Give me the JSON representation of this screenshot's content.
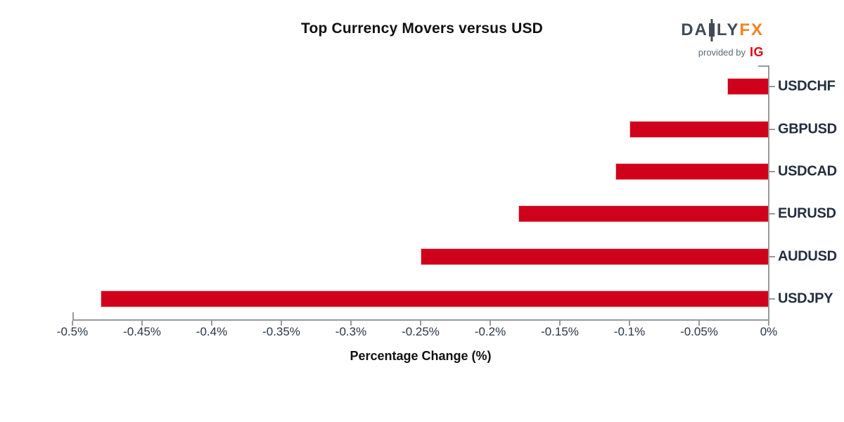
{
  "title": "Top Currency Movers versus USD",
  "logo": {
    "part_da": "DA",
    "part_ly": "LY",
    "part_fx": "FX",
    "provided_by": "provided by",
    "ig": "IG",
    "colors": {
      "letters_gray": "#414B56",
      "fx_orange": "#F5821F",
      "provided_by_gray": "#5A6A78",
      "ig_red": "#E40613"
    }
  },
  "chart_data": {
    "type": "bar",
    "orientation": "horizontal",
    "title": "Top Currency Movers versus USD",
    "xlabel": "Percentage Change (%)",
    "ylabel": "",
    "categories": [
      "USDCHF",
      "GBPUSD",
      "USDCAD",
      "EURUSD",
      "AUDUSD",
      "USDJPY"
    ],
    "values": [
      -0.03,
      -0.1,
      -0.11,
      -0.18,
      -0.25,
      -0.48
    ],
    "unit": "%",
    "xlim": [
      -0.5,
      0
    ],
    "xtick_values": [
      -0.5,
      -0.45,
      -0.4,
      -0.35,
      -0.3,
      -0.25,
      -0.2,
      -0.15,
      -0.1,
      -0.05,
      0
    ],
    "xtick_labels": [
      "-0.5%",
      "-0.45%",
      "-0.4%",
      "-0.35%",
      "-0.3%",
      "-0.25%",
      "-0.2%",
      "-0.15%",
      "-0.1%",
      "-0.05%",
      "0%"
    ],
    "grid": false,
    "legend": false,
    "value_axis_side": "bottom",
    "category_axis_side": "right",
    "bar_color": "#D0021B",
    "axis_color": "#999999",
    "tick_label_color": "#2A3647",
    "category_label_color": "#232F3E"
  }
}
